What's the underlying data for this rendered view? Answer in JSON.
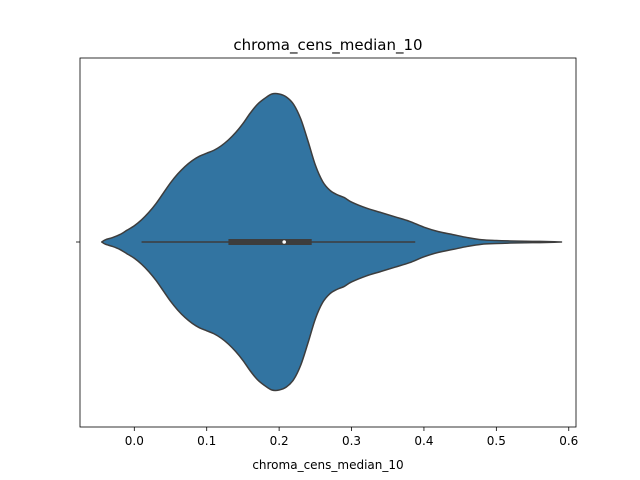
{
  "chart_data": {
    "type": "violin",
    "title": "chroma_cens_median_10",
    "xlabel": "chroma_cens_median_10",
    "ylabel": "",
    "orientation": "horizontal",
    "xlim": [
      -0.075,
      0.61
    ],
    "x_ticks": [
      0.0,
      0.1,
      0.2,
      0.3,
      0.4,
      0.5,
      0.6
    ],
    "x_tick_labels": [
      "0.0",
      "0.1",
      "0.2",
      "0.3",
      "0.4",
      "0.5",
      "0.6"
    ],
    "y_ticks": [
      ""
    ],
    "grid": false,
    "violin_color": "#3274a1",
    "edge_color": "#3d3d3d",
    "density": {
      "x": [
        -0.045,
        -0.04,
        -0.03,
        -0.02,
        -0.01,
        0.0,
        0.01,
        0.02,
        0.03,
        0.04,
        0.05,
        0.06,
        0.07,
        0.08,
        0.09,
        0.1,
        0.11,
        0.12,
        0.13,
        0.14,
        0.15,
        0.16,
        0.17,
        0.18,
        0.19,
        0.2,
        0.21,
        0.22,
        0.23,
        0.24,
        0.25,
        0.26,
        0.27,
        0.28,
        0.29,
        0.3,
        0.32,
        0.34,
        0.36,
        0.38,
        0.4,
        0.42,
        0.44,
        0.46,
        0.48,
        0.5,
        0.52,
        0.54,
        0.56,
        0.58,
        0.59
      ],
      "width": [
        0.0,
        0.015,
        0.03,
        0.05,
        0.08,
        0.11,
        0.15,
        0.2,
        0.26,
        0.33,
        0.4,
        0.46,
        0.51,
        0.55,
        0.58,
        0.6,
        0.62,
        0.65,
        0.69,
        0.74,
        0.8,
        0.87,
        0.93,
        0.97,
        1.0,
        1.0,
        0.98,
        0.93,
        0.83,
        0.68,
        0.52,
        0.41,
        0.35,
        0.32,
        0.3,
        0.27,
        0.23,
        0.2,
        0.17,
        0.14,
        0.1,
        0.07,
        0.05,
        0.03,
        0.015,
        0.01,
        0.007,
        0.005,
        0.004,
        0.002,
        0.0
      ]
    },
    "whisker_low": 0.01,
    "q1": 0.13,
    "median": 0.207,
    "q3": 0.245,
    "whisker_high": 0.388
  }
}
